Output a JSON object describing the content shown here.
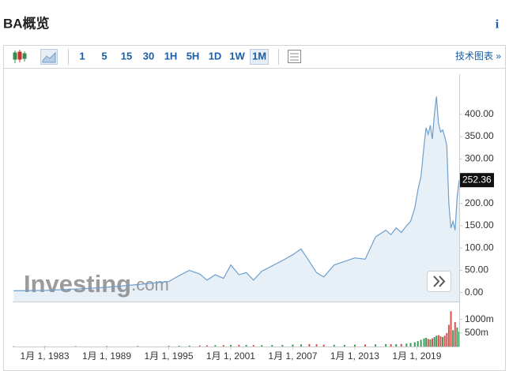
{
  "header": {
    "title": "BA概览",
    "info": "i"
  },
  "toolbar": {
    "intervals": [
      "1",
      "5",
      "15",
      "30",
      "1H",
      "5H",
      "1D",
      "1W",
      "1M"
    ],
    "active": 8,
    "technical": "技术图表 »"
  },
  "chart_data": {
    "type": "area",
    "x": [
      1980,
      1983,
      1986,
      1989,
      1992,
      1995,
      1996,
      1997,
      1998,
      1998.7,
      1999.5,
      2000.3,
      2001,
      2001.8,
      2002.5,
      2003.2,
      2004,
      2005,
      2006,
      2007,
      2007.8,
      2008.6,
      2009.3,
      2010,
      2011,
      2012,
      2013,
      2014,
      2015,
      2016,
      2016.5,
      2017,
      2017.5,
      2018,
      2018.4,
      2018.8,
      2019.1,
      2019.4,
      2019.7,
      2019.9,
      2020.1,
      2020.3,
      2020.5,
      2020.7,
      2020.9,
      2021.1,
      2021.3,
      2021.5,
      2021.7,
      2021.9,
      2022.1,
      2022.3,
      2022.5,
      2022.7,
      2022.9,
      2023.1
    ],
    "values": [
      4,
      5,
      8,
      12,
      18,
      25,
      38,
      50,
      42,
      28,
      40,
      32,
      62,
      40,
      45,
      28,
      48,
      60,
      72,
      85,
      98,
      70,
      45,
      35,
      62,
      70,
      78,
      75,
      125,
      140,
      130,
      145,
      135,
      150,
      160,
      190,
      230,
      260,
      330,
      370,
      355,
      375,
      345,
      400,
      440,
      380,
      360,
      365,
      350,
      330,
      200,
      145,
      160,
      140,
      215,
      252.36
    ],
    "volume": [
      10,
      12,
      15,
      18,
      20,
      25,
      30,
      35,
      40,
      45,
      50,
      55,
      60,
      65,
      60,
      55,
      50,
      55,
      60,
      70,
      80,
      90,
      85,
      70,
      65,
      60,
      70,
      75,
      80,
      90,
      85,
      90,
      95,
      110,
      130,
      160,
      200,
      250,
      300,
      320,
      280,
      260,
      300,
      350,
      400,
      420,
      380,
      350,
      400,
      500,
      800,
      1300,
      600,
      900,
      700,
      550
    ],
    "color": "#6f9fcc",
    "fill": "#e4edf6",
    "up_color": "#3c9a5f",
    "down_color": "#d9534f",
    "xlim": [
      1979.9,
      2023.1
    ],
    "xticks": [
      {
        "value": 1983,
        "label": "1月 1, 1983"
      },
      {
        "value": 1989,
        "label": "1月 1, 1989"
      },
      {
        "value": 1995,
        "label": "1月 1, 1995"
      },
      {
        "value": 2001,
        "label": "1月 1, 2001"
      },
      {
        "value": 2007,
        "label": "1月 1, 2007"
      },
      {
        "value": 2013,
        "label": "1月 1, 2013"
      },
      {
        "value": 2019,
        "label": "1月 1, 2019"
      }
    ],
    "ylim": [
      -20,
      490
    ],
    "yticks": [
      {
        "value": 0,
        "label": "0.00"
      },
      {
        "value": 50,
        "label": "50.00"
      },
      {
        "value": 100,
        "label": "100.00"
      },
      {
        "value": 150,
        "label": "150.00"
      },
      {
        "value": 200,
        "label": "200.00"
      },
      {
        "value": 250,
        "label": "250.00"
      },
      {
        "value": 300,
        "label": "300.00"
      },
      {
        "value": 350,
        "label": "350.00"
      },
      {
        "value": 400,
        "label": "400.00"
      }
    ],
    "vol_ylim": [
      0,
      1600
    ],
    "vol_yticks": [
      {
        "value": 500,
        "label": "500m"
      },
      {
        "value": 1000,
        "label": "1000m"
      }
    ],
    "watermark": {
      "brand": "Investing",
      "suffix": ".com"
    }
  }
}
